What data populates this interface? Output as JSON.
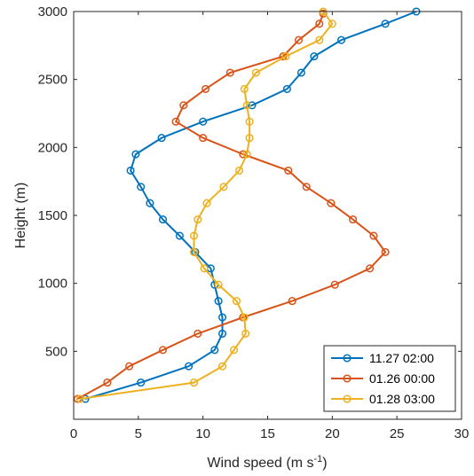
{
  "chart_data": {
    "type": "line",
    "xlabel_main": "Wind speed (m s",
    "xlabel_sup": "-1",
    "xlabel_end": ")",
    "ylabel": "Height (m)",
    "xlim": [
      0,
      30
    ],
    "ylim": [
      0,
      3000
    ],
    "xticks": [
      0,
      5,
      10,
      15,
      20,
      25,
      30
    ],
    "yticks": [
      500,
      1000,
      1500,
      2000,
      2500,
      3000
    ],
    "grid": false,
    "legend_position": "bottom-right",
    "series": [
      {
        "name": "11.27 02:00",
        "color": "#0072BD",
        "points": [
          [
            0.9,
            150
          ],
          [
            5.2,
            270
          ],
          [
            8.9,
            390
          ],
          [
            10.9,
            510
          ],
          [
            11.5,
            630
          ],
          [
            11.5,
            750
          ],
          [
            11.2,
            870
          ],
          [
            10.9,
            990
          ],
          [
            10.6,
            1110
          ],
          [
            9.4,
            1230
          ],
          [
            8.2,
            1350
          ],
          [
            6.9,
            1470
          ],
          [
            5.9,
            1590
          ],
          [
            5.2,
            1710
          ],
          [
            4.4,
            1830
          ],
          [
            4.8,
            1950
          ],
          [
            6.8,
            2070
          ],
          [
            10.0,
            2190
          ],
          [
            13.8,
            2310
          ],
          [
            16.5,
            2430
          ],
          [
            17.6,
            2550
          ],
          [
            18.6,
            2670
          ],
          [
            20.7,
            2790
          ],
          [
            24.1,
            2910
          ],
          [
            26.5,
            3000
          ]
        ]
      },
      {
        "name": "01.26 00:00",
        "color": "#D95319",
        "points": [
          [
            0.3,
            150
          ],
          [
            2.6,
            270
          ],
          [
            4.3,
            390
          ],
          [
            6.9,
            510
          ],
          [
            9.6,
            630
          ],
          [
            13.1,
            750
          ],
          [
            16.9,
            870
          ],
          [
            20.2,
            990
          ],
          [
            22.9,
            1110
          ],
          [
            24.1,
            1230
          ],
          [
            23.2,
            1350
          ],
          [
            21.6,
            1470
          ],
          [
            19.9,
            1590
          ],
          [
            18.0,
            1710
          ],
          [
            16.6,
            1830
          ],
          [
            13.1,
            1950
          ],
          [
            10.0,
            2070
          ],
          [
            7.9,
            2190
          ],
          [
            8.5,
            2310
          ],
          [
            10.2,
            2430
          ],
          [
            12.1,
            2550
          ],
          [
            16.2,
            2670
          ],
          [
            17.4,
            2790
          ],
          [
            19.0,
            2910
          ],
          [
            19.3,
            2985
          ]
        ]
      },
      {
        "name": "01.28 03:00",
        "color": "#EDB120",
        "points": [
          [
            0.5,
            150
          ],
          [
            9.3,
            270
          ],
          [
            11.5,
            390
          ],
          [
            12.4,
            510
          ],
          [
            13.3,
            630
          ],
          [
            13.2,
            750
          ],
          [
            12.6,
            870
          ],
          [
            11.2,
            990
          ],
          [
            10.1,
            1110
          ],
          [
            9.3,
            1230
          ],
          [
            9.3,
            1350
          ],
          [
            9.6,
            1470
          ],
          [
            10.3,
            1590
          ],
          [
            11.6,
            1710
          ],
          [
            12.8,
            1830
          ],
          [
            13.4,
            1950
          ],
          [
            13.6,
            2070
          ],
          [
            13.6,
            2190
          ],
          [
            13.4,
            2310
          ],
          [
            13.2,
            2430
          ],
          [
            14.1,
            2550
          ],
          [
            16.4,
            2670
          ],
          [
            19.0,
            2790
          ],
          [
            20.0,
            2910
          ],
          [
            19.3,
            3000
          ]
        ]
      }
    ]
  }
}
